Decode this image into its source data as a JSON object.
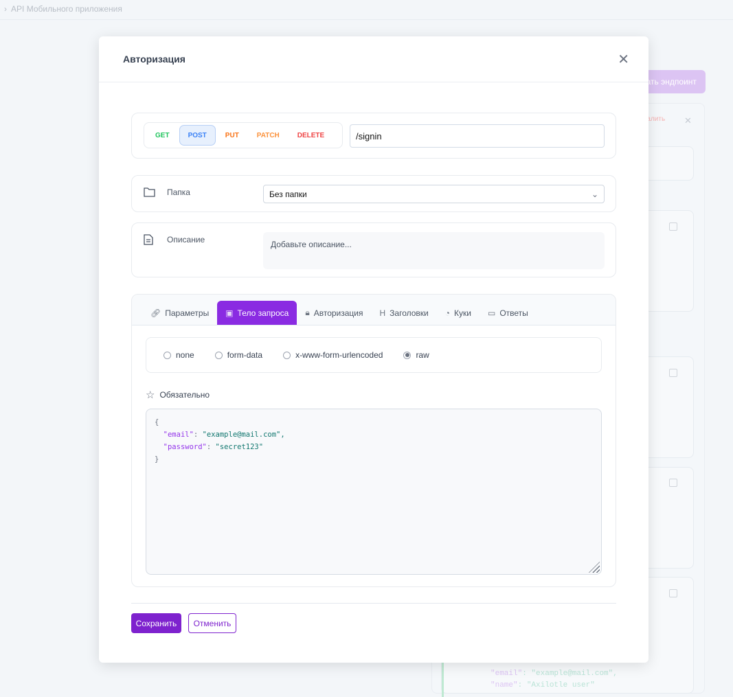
{
  "background": {
    "breadcrumb": "API Мобильного приложения",
    "create_button": "Создать эндпоинт",
    "delete_label": "Удалить",
    "code_lines": [
      {
        "key": "\"email\"",
        "value": "\"example@mail.com\","
      },
      {
        "key": "\"name\"",
        "value": "\"Axilotle user\""
      }
    ]
  },
  "modal": {
    "title": "Авторизация",
    "methods": [
      {
        "label": "GET",
        "color": "#22c55e"
      },
      {
        "label": "POST",
        "color": "#3b82f6"
      },
      {
        "label": "PUT",
        "color": "#f97316"
      },
      {
        "label": "PATCH",
        "color": "#fb923c"
      },
      {
        "label": "DELETE",
        "color": "#ef4444"
      }
    ],
    "selected_method": "POST",
    "url": "/signin",
    "folder": {
      "label": "Папка",
      "value": "Без папки"
    },
    "description": {
      "label": "Описание",
      "placeholder": "Добавьте описание..."
    },
    "tabs": [
      {
        "label": "Параметры",
        "icon": "link-icon"
      },
      {
        "label": "Тело запроса",
        "icon": "file-code-icon"
      },
      {
        "label": "Авторизация",
        "icon": "lock-icon"
      },
      {
        "label": "Заголовки",
        "icon": "heading-icon"
      },
      {
        "label": "Куки",
        "icon": "cookie-icon"
      },
      {
        "label": "Ответы",
        "icon": "message-icon"
      }
    ],
    "active_tab": "Тело запроса",
    "body_types": [
      "none",
      "form-data",
      "x-www-form-urlencoded",
      "raw"
    ],
    "selected_body_type": "raw",
    "required_label": "Обязательно",
    "body": {
      "open": "{",
      "lines": [
        {
          "key": "\"email\"",
          "value": "\"example@mail.com\","
        },
        {
          "key": "\"password\"",
          "value": "\"secret123\""
        }
      ],
      "close": "}"
    },
    "save": "Сохранить",
    "cancel": "Отменить"
  }
}
